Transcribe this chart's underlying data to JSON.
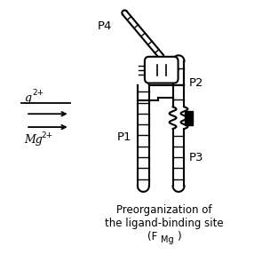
{
  "bg_color": "#ffffff",
  "line_color": "#000000",
  "text_color": "#000000",
  "lw": 1.5,
  "caption_line1": "Preorganization of",
  "caption_line2": "the ligand-binding site",
  "caption_line3_pre": "(F",
  "caption_subscript": "Mg",
  "caption_line3_post": ")",
  "label_P1": "P1",
  "label_P2": "P2",
  "label_P3": "P3",
  "label_P4": "P4"
}
